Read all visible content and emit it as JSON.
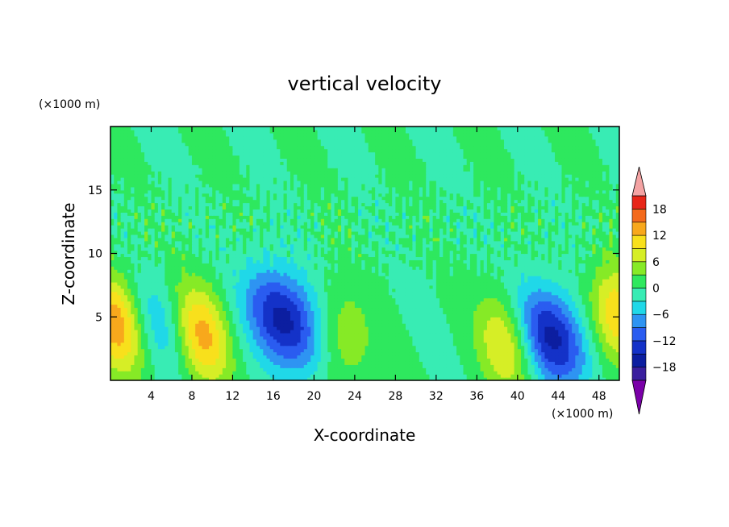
{
  "chart_data": {
    "type": "heatmap",
    "title": "vertical velocity",
    "xlabel": "X-coordinate",
    "ylabel": "Z-coordinate",
    "x_unit": "(×1000 m)",
    "y_unit": "(×1000 m)",
    "xlim": [
      0,
      50
    ],
    "ylim": [
      0,
      20
    ],
    "x_ticks": [
      "4",
      "8",
      "12",
      "16",
      "20",
      "24",
      "28",
      "32",
      "36",
      "40",
      "44",
      "48"
    ],
    "y_ticks": [
      "5",
      "10",
      "15"
    ],
    "grid": false,
    "colorbar": {
      "labels": [
        "18",
        "12",
        "6",
        "0",
        "−6",
        "−12",
        "−18"
      ],
      "levels": [
        -21,
        -18,
        -15,
        -12,
        -9,
        -6,
        -3,
        0,
        3,
        6,
        9,
        12,
        15,
        18,
        21
      ],
      "colors": [
        "#7a00a8",
        "#3a1f9e",
        "#0c1ea0",
        "#1432c8",
        "#2a5cf0",
        "#2e94f2",
        "#20d8e8",
        "#38ecb4",
        "#2ee85e",
        "#86ea26",
        "#d6ee26",
        "#f8e01c",
        "#f8a81c",
        "#f46a1c",
        "#e82618",
        "#f4a3a3"
      ]
    },
    "features": [
      {
        "kind": "updraft",
        "x": 0.6,
        "z": 4.6,
        "peak": 14
      },
      {
        "kind": "downdraft",
        "x": 4.7,
        "z": 4.6,
        "peak": -6
      },
      {
        "kind": "updraft",
        "x": 9.0,
        "z": 3.6,
        "peak": 13
      },
      {
        "kind": "downdraft",
        "x": 17.0,
        "z": 4.8,
        "peak": -17
      },
      {
        "kind": "updraft",
        "x": 23.0,
        "z": 3.3,
        "peak": 6
      },
      {
        "kind": "updraft",
        "x": 39.0,
        "z": 3.2,
        "peak": 11
      },
      {
        "kind": "downdraft",
        "x": 43.3,
        "z": 3.5,
        "peak": -17
      },
      {
        "kind": "updraft",
        "x": 49.7,
        "z": 5.0,
        "peak": 12
      },
      {
        "kind": "turbulent-layer",
        "z_min": 8,
        "z_max": 16,
        "range": [
          -6,
          6
        ]
      }
    ]
  }
}
